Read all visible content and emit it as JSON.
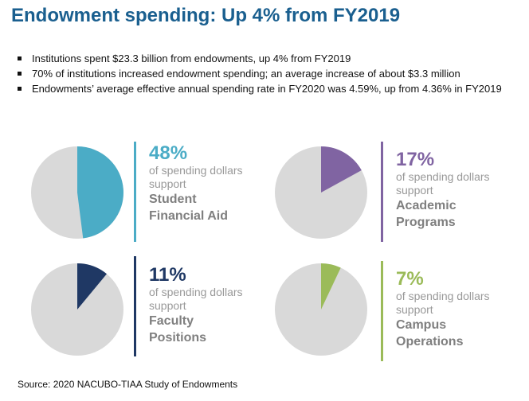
{
  "title": "Endowment spending: Up 4% from FY2019",
  "bullets": [
    "Institutions spent $23.3 billion from endowments, up 4% from FY2019",
    "70% of institutions increased endowment spending; an average increase of about $3.3 million",
    "Endowments’ average effective annual spending rate in FY2020 was 4.59%, up from 4.36% in FY2019"
  ],
  "source": "Source: 2020 NACUBO-TIAA Study of Endowments",
  "chart_data": [
    {
      "type": "pie",
      "values": [
        48,
        52
      ],
      "color": "#4bacc6",
      "rest_color": "#d9d9d9",
      "pct_label": "48%",
      "line1": "of spending dollars",
      "line2": "support",
      "cat1": "Student",
      "cat2": "Financial Aid"
    },
    {
      "type": "pie",
      "values": [
        17,
        83
      ],
      "color": "#8064a2",
      "rest_color": "#d9d9d9",
      "pct_label": "17%",
      "line1": "of spending dollars",
      "line2": "support",
      "cat1": "Academic",
      "cat2": "Programs"
    },
    {
      "type": "pie",
      "values": [
        11,
        89
      ],
      "color": "#1f3864",
      "rest_color": "#d9d9d9",
      "pct_label": "11%",
      "line1": "of spending dollars",
      "line2": "support",
      "cat1": "Faculty",
      "cat2": "Positions"
    },
    {
      "type": "pie",
      "values": [
        7,
        93
      ],
      "color": "#9bbb59",
      "rest_color": "#d9d9d9",
      "pct_label": "7%",
      "line1": "of spending dollars",
      "line2": "support",
      "cat1": "Campus",
      "cat2": "Operations"
    }
  ]
}
